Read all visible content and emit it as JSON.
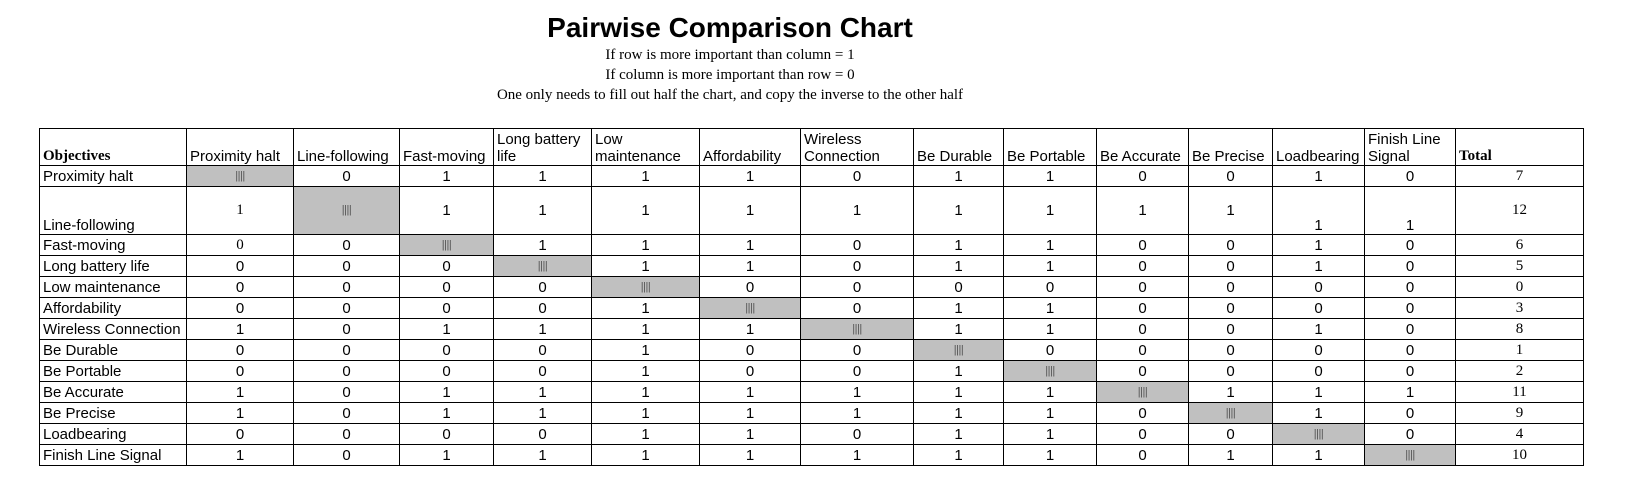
{
  "title": "Pairwise Comparison Chart",
  "subtitle_lines": [
    "If row is more important than column = 1",
    "If column is more important than row = 0",
    "One only needs to fill out half the chart, and copy the inverse to the other half"
  ],
  "table": {
    "corner_label": "Objectives",
    "total_label": "Total",
    "diagonal_mark": "||||",
    "columns": [
      "Proximity halt",
      "Line-following",
      "Fast-moving",
      "Long battery life",
      "Low maintenance",
      "Affordability",
      "Wireless Connection",
      "Be Durable",
      "Be Portable",
      "Be Accurate",
      "Be Precise",
      "Loadbearing",
      "Finish Line Signal"
    ],
    "rows": [
      {
        "label": "Proximity halt",
        "values": [
          "",
          "0",
          "1",
          "1",
          "1",
          "1",
          "0",
          "1",
          "1",
          "0",
          "0",
          "1",
          "0"
        ],
        "total": "7"
      },
      {
        "label": "Line-following",
        "values": [
          "1",
          "",
          "1",
          "1",
          "1",
          "1",
          "1",
          "1",
          "1",
          "1",
          "1",
          "1",
          "1"
        ],
        "total": "12"
      },
      {
        "label": "Fast-moving",
        "values": [
          "0",
          "0",
          "",
          "1",
          "1",
          "1",
          "0",
          "1",
          "1",
          "0",
          "0",
          "1",
          "0"
        ],
        "total": "6"
      },
      {
        "label": "Long battery life",
        "values": [
          "0",
          "0",
          "0",
          "",
          "1",
          "1",
          "0",
          "1",
          "1",
          "0",
          "0",
          "1",
          "0"
        ],
        "total": "5"
      },
      {
        "label": "Low maintenance",
        "values": [
          "0",
          "0",
          "0",
          "0",
          "",
          "0",
          "0",
          "0",
          "0",
          "0",
          "0",
          "0",
          "0"
        ],
        "total": "0"
      },
      {
        "label": "Affordability",
        "values": [
          "0",
          "0",
          "0",
          "0",
          "1",
          "",
          "0",
          "1",
          "1",
          "0",
          "0",
          "0",
          "0"
        ],
        "total": "3"
      },
      {
        "label": "Wireless Connection",
        "values": [
          "1",
          "0",
          "1",
          "1",
          "1",
          "1",
          "",
          "1",
          "1",
          "0",
          "0",
          "1",
          "0"
        ],
        "total": "8"
      },
      {
        "label": "Be Durable",
        "values": [
          "0",
          "0",
          "0",
          "0",
          "1",
          "0",
          "0",
          "",
          "0",
          "0",
          "0",
          "0",
          "0"
        ],
        "total": "1"
      },
      {
        "label": "Be Portable",
        "values": [
          "0",
          "0",
          "0",
          "0",
          "1",
          "0",
          "0",
          "1",
          "",
          "0",
          "0",
          "0",
          "0"
        ],
        "total": "2"
      },
      {
        "label": "Be Accurate",
        "values": [
          "1",
          "0",
          "1",
          "1",
          "1",
          "1",
          "1",
          "1",
          "1",
          "",
          "1",
          "1",
          "1"
        ],
        "total": "11"
      },
      {
        "label": "Be Precise",
        "values": [
          "1",
          "0",
          "1",
          "1",
          "1",
          "1",
          "1",
          "1",
          "1",
          "0",
          "",
          "1",
          "0"
        ],
        "total": "9"
      },
      {
        "label": "Loadbearing",
        "values": [
          "0",
          "0",
          "0",
          "0",
          "1",
          "1",
          "0",
          "1",
          "1",
          "0",
          "0",
          "",
          "0"
        ],
        "total": "4"
      },
      {
        "label": "Finish Line Signal",
        "values": [
          "1",
          "0",
          "1",
          "1",
          "1",
          "1",
          "1",
          "1",
          "1",
          "0",
          "1",
          "1",
          ""
        ],
        "total": "10"
      }
    ]
  }
}
